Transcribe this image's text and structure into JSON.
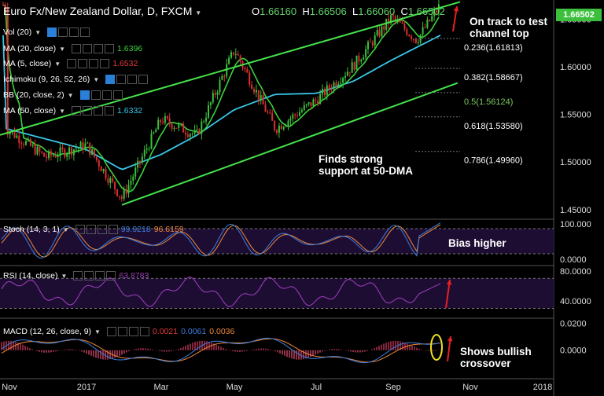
{
  "header": {
    "symbol": "Euro Fx/New Zealand Dollar, D, FXCM",
    "open": "1.66160",
    "high": "1.66506",
    "low": "1.66060",
    "close": "1.66502",
    "last_price_badge": "1.66502"
  },
  "indicators": [
    {
      "label": "Vol (20)",
      "value": "",
      "color": ""
    },
    {
      "label": "MA (20, close)",
      "value": "1.6396",
      "color": "#3cd23c"
    },
    {
      "label": "MA (5, close)",
      "value": "1.6532",
      "color": "#e23b3b"
    },
    {
      "label": "Ichimoku (9, 26, 52, 26)",
      "value": "",
      "color": ""
    },
    {
      "label": "BB (20, close, 2)",
      "value": "",
      "color": ""
    },
    {
      "label": "MA (50, close)",
      "value": "1.6332",
      "color": "#39c6e8"
    }
  ],
  "annotations": {
    "channel_top": "On track to test\nchannel top",
    "support": "Finds strong\nsupport at 50-DMA",
    "stoch": "Bias higher",
    "macd": "Shows bullish\ncrossover"
  },
  "colors": {
    "background": "#000000",
    "bull": "#3cbf3c",
    "bear": "#d83030",
    "ma20": "#3cd23c",
    "ma50": "#39c6e8",
    "channel": "#44e24a",
    "stoch_k": "#3a7fe0",
    "stoch_d": "#f08a3a",
    "rsi": "#a040c0",
    "macd": "#3a7fe0",
    "signal": "#f08a3a",
    "panel_fill": "#1e0d33",
    "arrow": "#e82020"
  },
  "chart_data": [
    {
      "type": "candlestick",
      "title": "Euro Fx/New Zealand Dollar, D, FXCM",
      "x_ticks": [
        "Nov",
        "2017",
        "Mar",
        "May",
        "Jul",
        "Sep",
        "Nov",
        "2018"
      ],
      "y_ticks": [
        "1.45000",
        "1.50000",
        "1.55000",
        "1.60000",
        "1.65000"
      ],
      "ylim": [
        1.44,
        1.67
      ],
      "close_path": [
        {
          "x": "Nov",
          "y": 1.535
        },
        {
          "x": "Dec",
          "y": 1.505
        },
        {
          "x": "2017",
          "y": 1.518
        },
        {
          "x": "Feb",
          "y": 1.462
        },
        {
          "x": "Mar",
          "y": 1.545
        },
        {
          "x": "Apr",
          "y": 1.528
        },
        {
          "x": "May",
          "y": 1.618
        },
        {
          "x": "Jun",
          "y": 1.535
        },
        {
          "x": "Jul",
          "y": 1.565
        },
        {
          "x": "Aug",
          "y": 1.602
        },
        {
          "x": "Sep",
          "y": 1.652
        },
        {
          "x": "Sep-late",
          "y": 1.628
        },
        {
          "x": "Oct",
          "y": 1.665
        }
      ],
      "ma50_path": [
        {
          "x": "Nov",
          "y": 1.535
        },
        {
          "x": "2017",
          "y": 1.513
        },
        {
          "x": "Feb",
          "y": 1.492
        },
        {
          "x": "Mar",
          "y": 1.508
        },
        {
          "x": "Apr",
          "y": 1.528
        },
        {
          "x": "May",
          "y": 1.555
        },
        {
          "x": "Jun",
          "y": 1.571
        },
        {
          "x": "Jul",
          "y": 1.572
        },
        {
          "x": "Aug",
          "y": 1.585
        },
        {
          "x": "Sep",
          "y": 1.607
        },
        {
          "x": "Oct",
          "y": 1.633
        }
      ],
      "channel_upper": [
        {
          "x": "Nov",
          "y": 1.535
        },
        {
          "x": "Oct",
          "y": 1.668
        }
      ],
      "channel_lower": [
        {
          "x": "Feb",
          "y": 1.455
        },
        {
          "x": "Oct",
          "y": 1.583
        }
      ],
      "fibonacci": [
        {
          "label": "0.236(1.61813)",
          "value": 1.61813
        },
        {
          "label": "0.382(1.58667)",
          "value": 1.58667
        },
        {
          "label": "0.5(1.56124)",
          "value": 1.56124
        },
        {
          "label": "0.618(1.53580)",
          "value": 1.5358
        },
        {
          "label": "0.786(1.49960)",
          "value": 1.4996
        }
      ]
    },
    {
      "type": "line",
      "title": "Stoch (14, 3, 1)",
      "values_label": [
        "99.9218",
        "96.6159"
      ],
      "y_ticks": [
        "100.000",
        "0.0000"
      ],
      "ylim": [
        0,
        100
      ]
    },
    {
      "type": "line",
      "title": "RSI (14, close)",
      "values_label": [
        "63.8783"
      ],
      "y_ticks": [
        "80.0000",
        "40.0000"
      ],
      "ylim": [
        20,
        85
      ]
    },
    {
      "type": "bar",
      "title": "MACD (12, 26, close, 9)",
      "values_label": [
        "0.0021",
        "0.0061",
        "0.0036"
      ],
      "y_ticks": [
        "0.0200",
        "0.0000"
      ],
      "ylim": [
        -0.02,
        0.022
      ]
    }
  ]
}
